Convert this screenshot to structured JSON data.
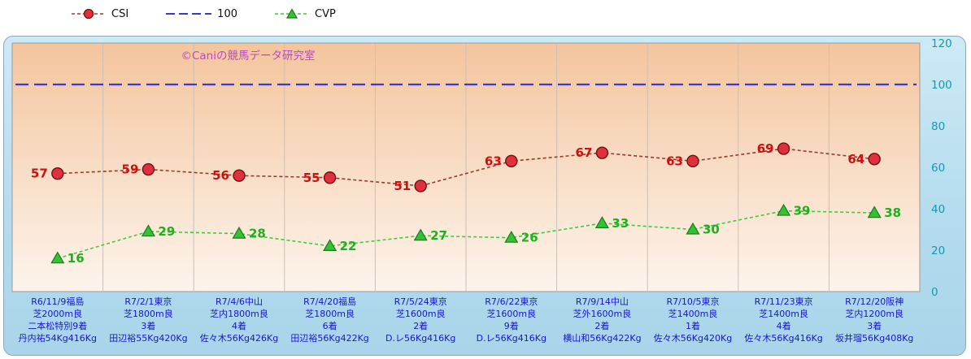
{
  "watermark": "©Caniの競馬データ研究室",
  "colors": {
    "panel_top": "#cdeaf6",
    "panel_bottom": "#a9d4e9",
    "panel_border": "#8fa8b8",
    "plot_top": "#f4c59d",
    "plot_bottom": "#fdf4ec",
    "plot_border": "#9a9a9a",
    "grid": "#c9c0b8",
    "csi_line": "#9c3a32",
    "csi_fill": "#e03040",
    "csi_edge": "#701010",
    "csi_label": "#cc1111",
    "ref_line": "#3a3ad0",
    "cvp_line": "#3ecc3e",
    "cvp_fill": "#35c135",
    "cvp_edge": "#1d7a1d",
    "cvp_label": "#1faf1f",
    "axis_x": "#1717cf",
    "axis_y": "#129aae",
    "watermark": "#bb49c6",
    "legend_text": "#111111"
  },
  "chart_data": {
    "type": "line",
    "legend_position": "top",
    "ylim": [
      0,
      120
    ],
    "yticks": [
      0,
      20,
      40,
      60,
      80,
      100,
      120
    ],
    "categories": [
      [
        "R6/11/9福島",
        "芝2000m良",
        "二本松特別9着",
        "丹内祐54Kg416Kg"
      ],
      [
        "R7/2/1東京",
        "芝1800m良",
        "3着",
        "田辺裕55Kg420Kg"
      ],
      [
        "R7/4/6中山",
        "芝内1800m良",
        "4着",
        "佐々木56Kg426Kg"
      ],
      [
        "R7/4/20福島",
        "芝1800m良",
        "6着",
        "田辺裕56Kg422Kg"
      ],
      [
        "R7/5/24東京",
        "芝1600m良",
        "2着",
        "D.レ56Kg416Kg"
      ],
      [
        "R7/6/22東京",
        "芝1600m良",
        "9着",
        "D.レ56Kg416Kg"
      ],
      [
        "R7/9/14中山",
        "芝外1600m良",
        "2着",
        "横山和56Kg422Kg"
      ],
      [
        "R7/10/5東京",
        "芝1400m良",
        "1着",
        "佐々木56Kg420Kg"
      ],
      [
        "R7/11/23東京",
        "芝1400m良",
        "4着",
        "佐々木56Kg416Kg"
      ],
      [
        "R7/12/20阪神",
        "芝内1200m良",
        "3着",
        "坂井瑠56Kg408Kg"
      ]
    ],
    "series": [
      {
        "id": "csi",
        "name": "CSI",
        "marker": "circle",
        "label_side": "left",
        "values": [
          57,
          59,
          56,
          55,
          51,
          63,
          67,
          63,
          69,
          64
        ]
      },
      {
        "id": "ref",
        "name": "100",
        "type": "refline",
        "value": 100
      },
      {
        "id": "cvp",
        "name": "CVP",
        "marker": "triangle",
        "label_side": "right",
        "values": [
          16,
          29,
          28,
          22,
          27,
          26,
          33,
          30,
          39,
          38
        ]
      }
    ]
  }
}
